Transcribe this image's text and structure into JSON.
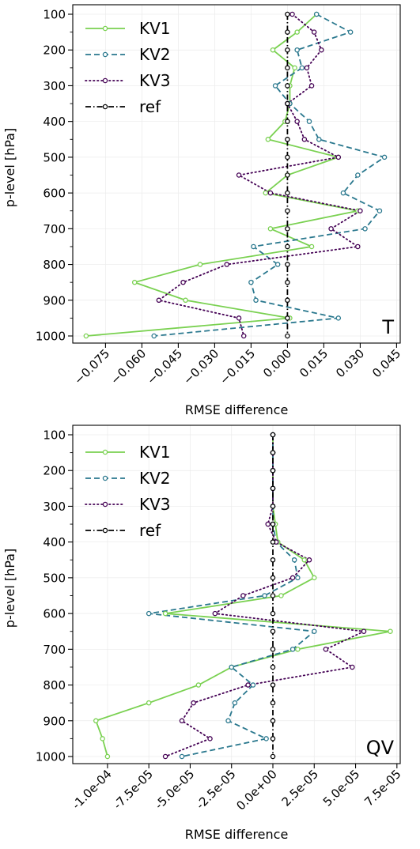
{
  "figure": {
    "ylabel": "p-level [hPa]",
    "xlabel": "RMSE difference"
  },
  "chart_data": [
    {
      "type": "line",
      "panel_label": "T",
      "xlabel": "RMSE difference",
      "ylabel": "p-level [hPa]",
      "y_inverted": true,
      "xlim": [
        -0.0885,
        0.0465
      ],
      "ylim": [
        1000,
        100
      ],
      "xticks": [
        -0.075,
        -0.06,
        -0.045,
        -0.03,
        -0.015,
        0.0,
        0.015,
        0.03,
        0.045
      ],
      "xtick_labels": [
        "−0.075",
        "−0.060",
        "−0.045",
        "−0.030",
        "−0.015",
        "0.000",
        "0.015",
        "0.030",
        "0.045"
      ],
      "yticks": [
        100,
        200,
        300,
        400,
        500,
        600,
        700,
        800,
        900,
        1000
      ],
      "ytick_labels": [
        "100",
        "200",
        "300",
        "400",
        "500",
        "600",
        "700",
        "800",
        "900",
        "1000"
      ],
      "grid": true,
      "legend_position": "top-left",
      "levels": [
        100,
        150,
        200,
        250,
        300,
        350,
        400,
        450,
        500,
        550,
        600,
        650,
        700,
        750,
        800,
        850,
        900,
        950,
        1000
      ],
      "series": [
        {
          "name": "KV1",
          "color": "#7ad151",
          "dash": "solid",
          "values": [
            0.012,
            0.004,
            -0.006,
            0.003,
            0.001,
            0.001,
            -0.001,
            -0.008,
            0.021,
            0.0,
            -0.009,
            0.029,
            -0.007,
            0.01,
            -0.036,
            -0.063,
            -0.042,
            0.001,
            -0.083
          ]
        },
        {
          "name": "KV2",
          "color": "#2a788e",
          "dash": "dashed",
          "values": [
            0.012,
            0.026,
            0.004,
            0.006,
            -0.005,
            0.001,
            0.009,
            0.013,
            0.04,
            0.029,
            0.023,
            0.038,
            0.032,
            -0.014,
            -0.004,
            -0.015,
            -0.013,
            0.021,
            -0.055
          ]
        },
        {
          "name": "KV3",
          "color": "#440154",
          "dash": "dotted",
          "values": [
            0.002,
            0.011,
            0.014,
            0.008,
            0.01,
            0.0,
            0.004,
            0.007,
            0.021,
            -0.02,
            -0.007,
            0.03,
            0.018,
            0.029,
            -0.025,
            -0.043,
            -0.053,
            -0.02,
            -0.018
          ]
        },
        {
          "name": "ref",
          "color": "#000000",
          "dash": "dashdot",
          "values": [
            0,
            0,
            0,
            0,
            0,
            0,
            0,
            0,
            0,
            0,
            0,
            0,
            0,
            0,
            0,
            0,
            0,
            0,
            0
          ]
        }
      ]
    },
    {
      "type": "line",
      "panel_label": "QV",
      "xlabel": "RMSE difference",
      "ylabel": "p-level [hPa]",
      "y_inverted": true,
      "xlim": [
        -0.000121,
        7.7e-05
      ],
      "ylim": [
        1000,
        100
      ],
      "xticks": [
        -0.0001,
        -7.5e-05,
        -5e-05,
        -2.5e-05,
        0.0,
        2.5e-05,
        5e-05,
        7.5e-05
      ],
      "xtick_labels": [
        "-1.0e-04",
        "-7.5e-05",
        "-5.0e-05",
        "-2.5e-05",
        "0.0e+00",
        "2.5e-05",
        "5.0e-05",
        "7.5e-05"
      ],
      "yticks": [
        100,
        200,
        300,
        400,
        500,
        600,
        700,
        800,
        900,
        1000
      ],
      "ytick_labels": [
        "100",
        "200",
        "300",
        "400",
        "500",
        "600",
        "700",
        "800",
        "900",
        "1000"
      ],
      "grid": true,
      "legend_position": "top-left",
      "levels": [
        100,
        150,
        200,
        250,
        300,
        350,
        400,
        450,
        500,
        550,
        600,
        650,
        700,
        750,
        800,
        850,
        900,
        950,
        1000
      ],
      "series": [
        {
          "name": "KV1",
          "color": "#7ad151",
          "dash": "solid",
          "values": [
            0.0,
            0.0,
            0.0,
            0.0,
            0.0,
            1.5e-06,
            3e-06,
            1.9e-05,
            2.5e-05,
            5e-06,
            -6.5e-05,
            7.1e-05,
            1.5e-05,
            -2.5e-05,
            -4.5e-05,
            -7.5e-05,
            -0.000107,
            -0.000103,
            -0.0001
          ]
        },
        {
          "name": "KV2",
          "color": "#2a788e",
          "dash": "dashed",
          "values": [
            0.0,
            0.0,
            0.0,
            0.0,
            0.0,
            0.0,
            2e-06,
            1.3e-05,
            1.5e-05,
            -5e-06,
            -7.5e-05,
            2.5e-05,
            1.2e-05,
            -2.5e-05,
            -1.2e-05,
            -2.3e-05,
            -2.7e-05,
            -4e-06,
            -5.5e-05
          ]
        },
        {
          "name": "KV3",
          "color": "#440154",
          "dash": "dotted",
          "values": [
            0.0,
            0.0,
            0.0,
            0.0,
            0.0,
            -3e-06,
            2e-06,
            2.2e-05,
            1.2e-05,
            -1.8e-05,
            -3.5e-05,
            5.5e-05,
            3.2e-05,
            4.8e-05,
            -1.5e-05,
            -4.8e-05,
            -5.5e-05,
            -3.8e-05,
            -6.5e-05
          ]
        },
        {
          "name": "ref",
          "color": "#000000",
          "dash": "dashdot",
          "values": [
            0,
            0,
            0,
            0,
            0,
            0,
            0,
            0,
            0,
            0,
            0,
            0,
            0,
            0,
            0,
            0,
            0,
            0,
            0
          ]
        }
      ]
    }
  ]
}
